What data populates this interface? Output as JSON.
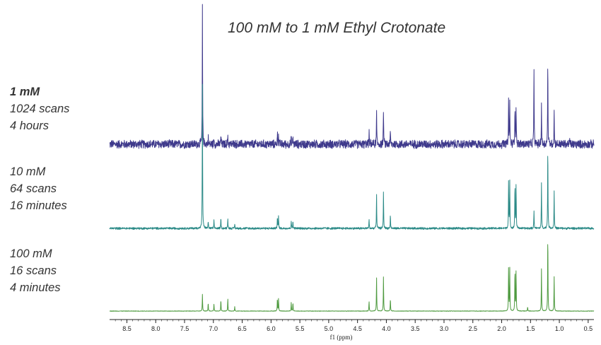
{
  "chart_data": {
    "type": "line",
    "title": "100 mM to 1 mM Ethyl Crotonate",
    "xlabel": "f1 (ppm)",
    "x_reversed": true,
    "xlim": [
      8.8,
      0.4
    ],
    "xticks": [
      "8.5",
      "8.0",
      "7.5",
      "7.0",
      "6.5",
      "6.0",
      "5.5",
      "5.0",
      "4.5",
      "4.0",
      "3.5",
      "3.0",
      "2.5",
      "2.0",
      "1.5",
      "1.0",
      "0.5"
    ],
    "series": [
      {
        "labels": [
          "1 mM",
          "1024 scans",
          "4 hours"
        ],
        "color": "#3f3a8c",
        "noise": 0.035,
        "peaks": [
          [
            7.19,
            1.0
          ],
          [
            7.09,
            0.05
          ],
          [
            6.99,
            0.05
          ],
          [
            6.87,
            0.07
          ],
          [
            6.75,
            0.07
          ],
          [
            6.63,
            0.03
          ],
          [
            5.89,
            0.08
          ],
          [
            5.87,
            0.08
          ],
          [
            5.65,
            0.05
          ],
          [
            5.62,
            0.05
          ],
          [
            4.3,
            0.09
          ],
          [
            4.17,
            0.24
          ],
          [
            4.05,
            0.26
          ],
          [
            3.93,
            0.09
          ],
          [
            1.88,
            0.31
          ],
          [
            1.86,
            0.31
          ],
          [
            1.77,
            0.3
          ],
          [
            1.75,
            0.3
          ],
          [
            1.44,
            0.57
          ],
          [
            1.31,
            0.3
          ],
          [
            1.2,
            0.63
          ],
          [
            1.09,
            0.25
          ],
          [
            0.82,
            0.04
          ]
        ]
      },
      {
        "labels": [
          "10 mM",
          "64 scans",
          "16 minutes"
        ],
        "color": "#2b8a87",
        "noise": 0.008,
        "peaks": [
          [
            7.19,
            0.95
          ],
          [
            7.09,
            0.05
          ],
          [
            6.99,
            0.05
          ],
          [
            6.87,
            0.07
          ],
          [
            6.75,
            0.07
          ],
          [
            6.63,
            0.03
          ],
          [
            5.89,
            0.08
          ],
          [
            5.87,
            0.08
          ],
          [
            5.65,
            0.05
          ],
          [
            5.62,
            0.05
          ],
          [
            4.3,
            0.06
          ],
          [
            4.17,
            0.23
          ],
          [
            4.05,
            0.25
          ],
          [
            3.93,
            0.09
          ],
          [
            1.88,
            0.31
          ],
          [
            1.86,
            0.31
          ],
          [
            1.77,
            0.3
          ],
          [
            1.75,
            0.3
          ],
          [
            1.44,
            0.12
          ],
          [
            1.31,
            0.3
          ],
          [
            1.2,
            0.56
          ],
          [
            1.09,
            0.25
          ]
        ]
      },
      {
        "labels": [
          "100 mM",
          "16 scans",
          "4 minutes"
        ],
        "color": "#4e9a3f",
        "noise": 0.002,
        "peaks": [
          [
            7.19,
            0.12
          ],
          [
            7.09,
            0.06
          ],
          [
            6.99,
            0.05
          ],
          [
            6.87,
            0.08
          ],
          [
            6.75,
            0.09
          ],
          [
            6.63,
            0.03
          ],
          [
            5.89,
            0.09
          ],
          [
            5.87,
            0.09
          ],
          [
            5.65,
            0.06
          ],
          [
            5.62,
            0.06
          ],
          [
            4.3,
            0.07
          ],
          [
            4.17,
            0.24
          ],
          [
            4.05,
            0.25
          ],
          [
            3.93,
            0.09
          ],
          [
            1.88,
            0.31
          ],
          [
            1.86,
            0.31
          ],
          [
            1.77,
            0.3
          ],
          [
            1.75,
            0.3
          ],
          [
            1.55,
            0.03
          ],
          [
            1.31,
            0.3
          ],
          [
            1.2,
            0.56
          ],
          [
            1.09,
            0.25
          ]
        ]
      }
    ]
  }
}
